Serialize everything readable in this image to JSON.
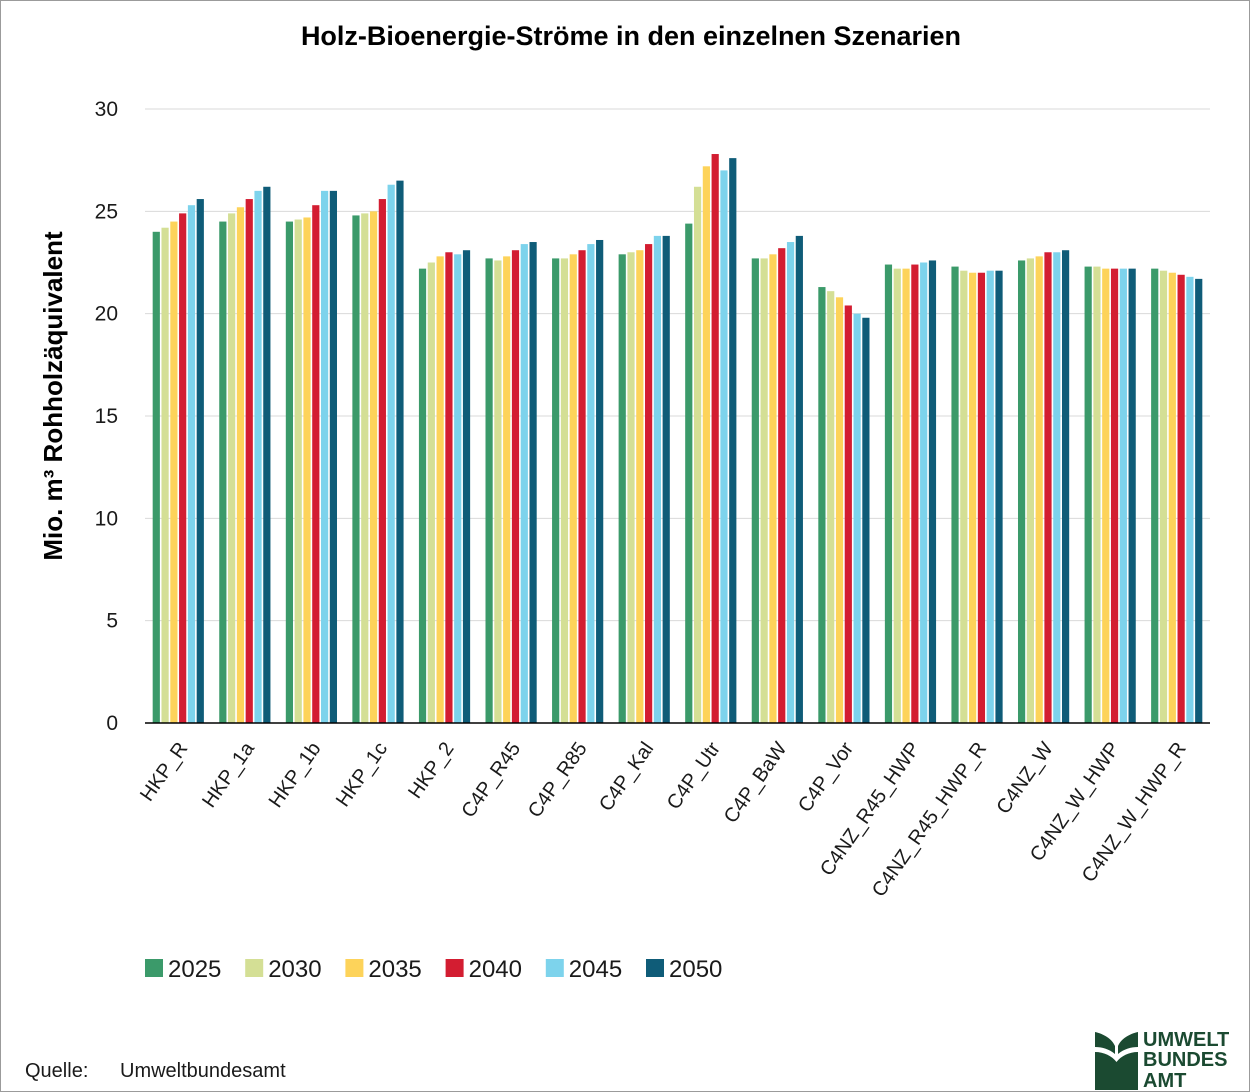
{
  "chart_data": {
    "type": "bar",
    "title": "Holz-Bioenergie-Ströme in den einzelnen Szenarien",
    "ylabel": "Mio. m³ Rohholzäquivalent",
    "ylim": [
      0,
      30
    ],
    "yticks": [
      0,
      5,
      10,
      15,
      20,
      25,
      30
    ],
    "grid": true,
    "legend_position": "bottom-left",
    "categories": [
      "HKP_R",
      "HKP_1a",
      "HKP_1b",
      "HKP_1c",
      "HKP_2",
      "C4P_R45",
      "C4P_R85",
      "C4P_Kal",
      "C4P_Utr",
      "C4P_BaW",
      "C4P_Vor",
      "C4NZ_R45_HWP",
      "C4NZ_R45_HWP_R",
      "C4NZ_W",
      "C4NZ_W_HWP",
      "C4NZ_W_HWP_R"
    ],
    "series": [
      {
        "name": "2025",
        "color": "#3b9a6a",
        "values": [
          24.0,
          24.5,
          24.5,
          24.8,
          22.2,
          22.7,
          22.7,
          22.9,
          24.4,
          22.7,
          21.3,
          22.4,
          22.3,
          22.6,
          22.3,
          22.2
        ]
      },
      {
        "name": "2030",
        "color": "#d4df95",
        "values": [
          24.2,
          24.9,
          24.6,
          24.9,
          22.5,
          22.6,
          22.7,
          23.0,
          26.2,
          22.7,
          21.1,
          22.2,
          22.1,
          22.7,
          22.3,
          22.1
        ]
      },
      {
        "name": "2035",
        "color": "#fdd35a",
        "values": [
          24.5,
          25.2,
          24.7,
          25.0,
          22.8,
          22.8,
          22.9,
          23.1,
          27.2,
          22.9,
          20.8,
          22.2,
          22.0,
          22.8,
          22.2,
          22.0
        ]
      },
      {
        "name": "2040",
        "color": "#d31d31",
        "values": [
          24.9,
          25.6,
          25.3,
          25.6,
          23.0,
          23.1,
          23.1,
          23.4,
          27.8,
          23.2,
          20.4,
          22.4,
          22.0,
          23.0,
          22.2,
          21.9
        ]
      },
      {
        "name": "2045",
        "color": "#7dd3ec",
        "values": [
          25.3,
          26.0,
          26.0,
          26.3,
          22.9,
          23.4,
          23.4,
          23.8,
          27.0,
          23.5,
          20.0,
          22.5,
          22.1,
          23.0,
          22.2,
          21.8
        ]
      },
      {
        "name": "2050",
        "color": "#0f5c78",
        "values": [
          25.6,
          26.2,
          26.0,
          26.5,
          23.1,
          23.5,
          23.6,
          23.8,
          27.6,
          23.8,
          19.8,
          22.6,
          22.1,
          23.1,
          22.2,
          21.7
        ]
      }
    ]
  },
  "source": {
    "label": "Quelle:",
    "value": "Umweltbundesamt"
  },
  "logo": {
    "text_lines": [
      "UMWELT",
      "BUNDES",
      "AMT"
    ],
    "color": "#1b4a31"
  }
}
